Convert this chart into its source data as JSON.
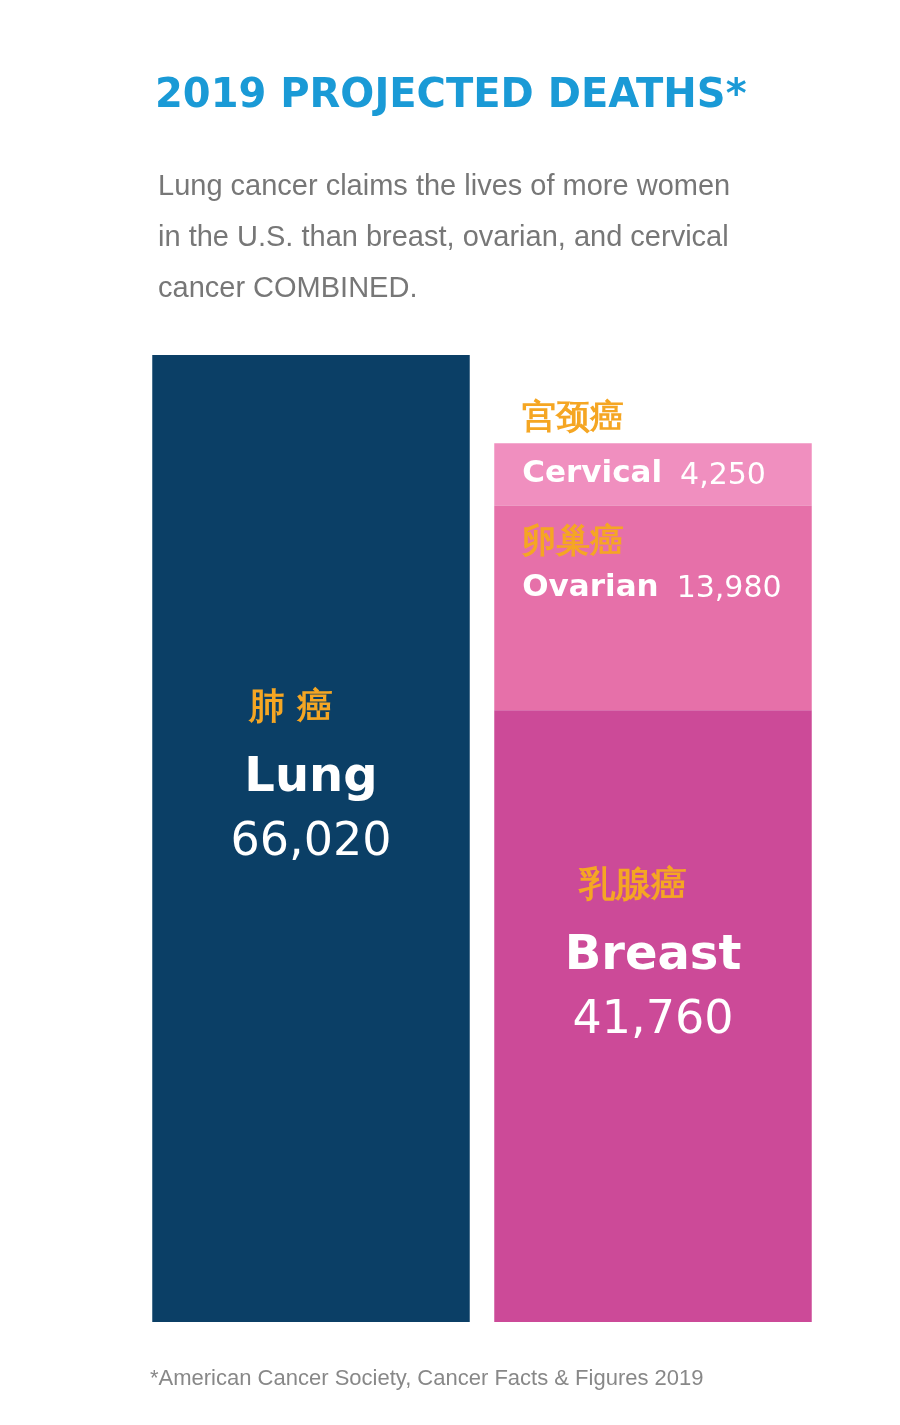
{
  "chart_data": {
    "type": "bar",
    "title": "2019 PROJECTED DEATHS*",
    "subtitle": "Lung cancer claims the lives of more women in the U.S. than breast, ovarian, and cervical cancer COMBINED.",
    "categories": [
      null,
      null
    ],
    "stacked": true,
    "legend": false,
    "grid": false,
    "tick_labels": false,
    "series": [
      {
        "name": "肺 癌\nLung",
        "color": "#0b3f66",
        "values": [
          66020,
          null
        ],
        "value_labels": [
          "66,020",
          null
        ]
      },
      {
        "name": "乳腺癌\nBreast",
        "color": "#cc4a98",
        "values": [
          null,
          41760
        ],
        "value_labels": [
          null,
          "41,760"
        ]
      },
      {
        "name": "卵巢癌\nOvarian",
        "color": "#e670a9",
        "values": [
          null,
          13980
        ],
        "value_labels": [
          null,
          "13,980"
        ]
      },
      {
        "name": "宫颈癌\nCervical",
        "color": "#f08fbf",
        "values": [
          null,
          4250
        ],
        "value_labels": [
          null,
          "4,250"
        ]
      }
    ],
    "annotations": [
      "*American Cancer Society, Cancer Facts & Figures 2019"
    ]
  }
}
